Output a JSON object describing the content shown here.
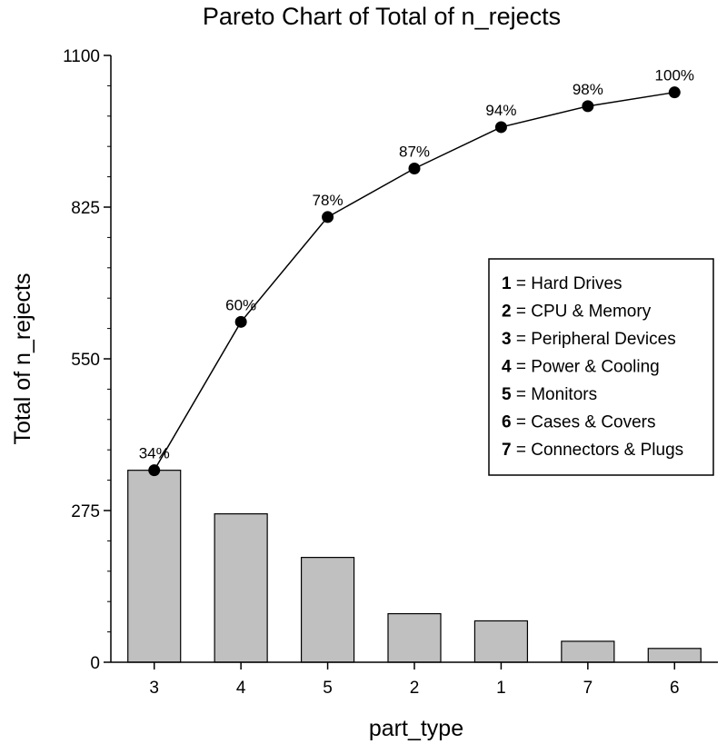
{
  "chart_data": {
    "type": "bar",
    "title": "Pareto Chart of Total of n_rejects",
    "xlabel": "part_type",
    "ylabel": "Total of n_rejects",
    "ylim": [
      0,
      1100
    ],
    "yticks": [
      0,
      275,
      550,
      825,
      1100
    ],
    "categories": [
      "3",
      "4",
      "5",
      "2",
      "1",
      "7",
      "6"
    ],
    "values": [
      348,
      269,
      190,
      88,
      75,
      38,
      25
    ],
    "cumulative": {
      "values": [
        348,
        617,
        807,
        895,
        970,
        1008,
        1033
      ],
      "labels": [
        "34%",
        "60%",
        "78%",
        "87%",
        "94%",
        "98%",
        "100%"
      ]
    },
    "colors": {
      "bar_fill": "#c0c0c0",
      "bar_stroke": "#000000",
      "line": "#000000"
    },
    "legend": {
      "placement": "right",
      "entries": [
        {
          "key": "1",
          "label": "= Hard Drives"
        },
        {
          "key": "2",
          "label": "= CPU & Memory"
        },
        {
          "key": "3",
          "label": "= Peripheral Devices"
        },
        {
          "key": "4",
          "label": "= Power & Cooling"
        },
        {
          "key": "5",
          "label": "= Monitors"
        },
        {
          "key": "6",
          "label": "= Cases & Covers"
        },
        {
          "key": "7",
          "label": "= Connectors & Plugs"
        }
      ]
    }
  }
}
